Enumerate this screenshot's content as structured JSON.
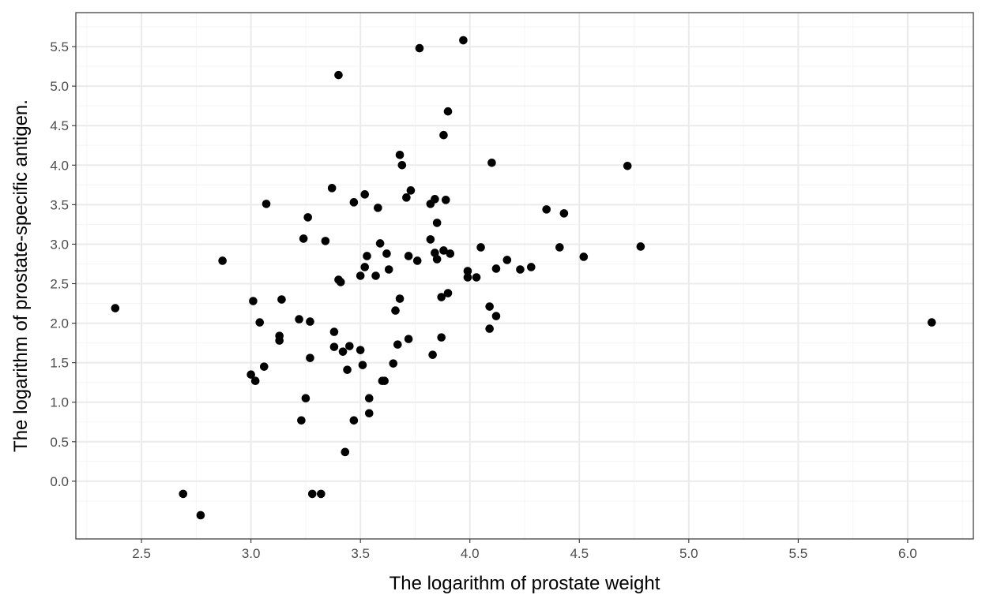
{
  "chart_data": {
    "type": "scatter",
    "title": "",
    "xlabel": "The logarithm of prostate weight",
    "ylabel": "The logarithm of prostate-specific antigen.",
    "xlim": [
      2.2,
      6.3
    ],
    "ylim": [
      -0.73,
      5.93
    ],
    "x_ticks": [
      "2.5",
      "3.0",
      "3.5",
      "4.0",
      "4.5",
      "5.0",
      "5.5",
      "6.0"
    ],
    "y_ticks": [
      "0.0",
      "0.5",
      "1.0",
      "1.5",
      "2.0",
      "2.5",
      "3.0",
      "3.5",
      "4.0",
      "4.5",
      "5.0",
      "5.5"
    ],
    "grid": true,
    "theme": "bw",
    "colors": {
      "point": "#000000",
      "grid_major": "#ebebeb",
      "grid_minor": "#f5f5f5",
      "panel_border": "#333333"
    },
    "points": [
      [
        2.38,
        2.19
      ],
      [
        2.69,
        -0.16
      ],
      [
        2.77,
        -0.43
      ],
      [
        2.87,
        2.79
      ],
      [
        3.0,
        1.35
      ],
      [
        3.01,
        2.28
      ],
      [
        3.02,
        1.27
      ],
      [
        3.04,
        2.01
      ],
      [
        3.06,
        1.45
      ],
      [
        3.07,
        3.51
      ],
      [
        3.13,
        1.78
      ],
      [
        3.13,
        1.84
      ],
      [
        3.14,
        2.3
      ],
      [
        3.22,
        2.05
      ],
      [
        3.23,
        0.77
      ],
      [
        3.24,
        3.07
      ],
      [
        3.25,
        1.05
      ],
      [
        3.26,
        3.34
      ],
      [
        3.27,
        2.02
      ],
      [
        3.27,
        1.56
      ],
      [
        3.28,
        -0.16
      ],
      [
        3.32,
        -0.16
      ],
      [
        3.34,
        3.04
      ],
      [
        3.37,
        3.71
      ],
      [
        3.38,
        1.89
      ],
      [
        3.38,
        1.7
      ],
      [
        3.4,
        5.14
      ],
      [
        3.4,
        2.55
      ],
      [
        3.41,
        2.52
      ],
      [
        3.42,
        1.64
      ],
      [
        3.43,
        0.37
      ],
      [
        3.44,
        1.41
      ],
      [
        3.45,
        1.71
      ],
      [
        3.47,
        3.53
      ],
      [
        3.47,
        0.77
      ],
      [
        3.5,
        2.6
      ],
      [
        3.5,
        1.66
      ],
      [
        3.51,
        1.47
      ],
      [
        3.52,
        3.63
      ],
      [
        3.52,
        2.71
      ],
      [
        3.53,
        2.85
      ],
      [
        3.54,
        1.05
      ],
      [
        3.54,
        0.86
      ],
      [
        3.57,
        2.6
      ],
      [
        3.58,
        3.46
      ],
      [
        3.59,
        3.01
      ],
      [
        3.6,
        1.27
      ],
      [
        3.61,
        1.27
      ],
      [
        3.62,
        2.88
      ],
      [
        3.63,
        2.68
      ],
      [
        3.65,
        1.49
      ],
      [
        3.66,
        2.16
      ],
      [
        3.67,
        1.73
      ],
      [
        3.68,
        4.13
      ],
      [
        3.68,
        2.31
      ],
      [
        3.69,
        4.0
      ],
      [
        3.71,
        3.59
      ],
      [
        3.72,
        2.85
      ],
      [
        3.72,
        1.8
      ],
      [
        3.73,
        3.68
      ],
      [
        3.76,
        2.79
      ],
      [
        3.77,
        5.48
      ],
      [
        3.82,
        3.51
      ],
      [
        3.82,
        3.06
      ],
      [
        3.83,
        1.6
      ],
      [
        3.84,
        3.57
      ],
      [
        3.84,
        2.89
      ],
      [
        3.85,
        3.27
      ],
      [
        3.85,
        2.81
      ],
      [
        3.87,
        2.33
      ],
      [
        3.87,
        1.82
      ],
      [
        3.88,
        4.38
      ],
      [
        3.88,
        2.92
      ],
      [
        3.89,
        3.56
      ],
      [
        3.9,
        4.68
      ],
      [
        3.9,
        2.38
      ],
      [
        3.91,
        2.88
      ],
      [
        3.97,
        5.58
      ],
      [
        3.99,
        2.66
      ],
      [
        3.99,
        2.58
      ],
      [
        4.03,
        2.58
      ],
      [
        4.05,
        2.96
      ],
      [
        4.09,
        2.21
      ],
      [
        4.09,
        1.93
      ],
      [
        4.1,
        4.03
      ],
      [
        4.12,
        2.69
      ],
      [
        4.12,
        2.09
      ],
      [
        4.17,
        2.8
      ],
      [
        4.23,
        2.68
      ],
      [
        4.28,
        2.71
      ],
      [
        4.35,
        3.44
      ],
      [
        4.41,
        2.96
      ],
      [
        4.43,
        3.39
      ],
      [
        4.52,
        2.84
      ],
      [
        4.72,
        3.99
      ],
      [
        4.78,
        2.97
      ],
      [
        6.11,
        2.01
      ]
    ]
  }
}
